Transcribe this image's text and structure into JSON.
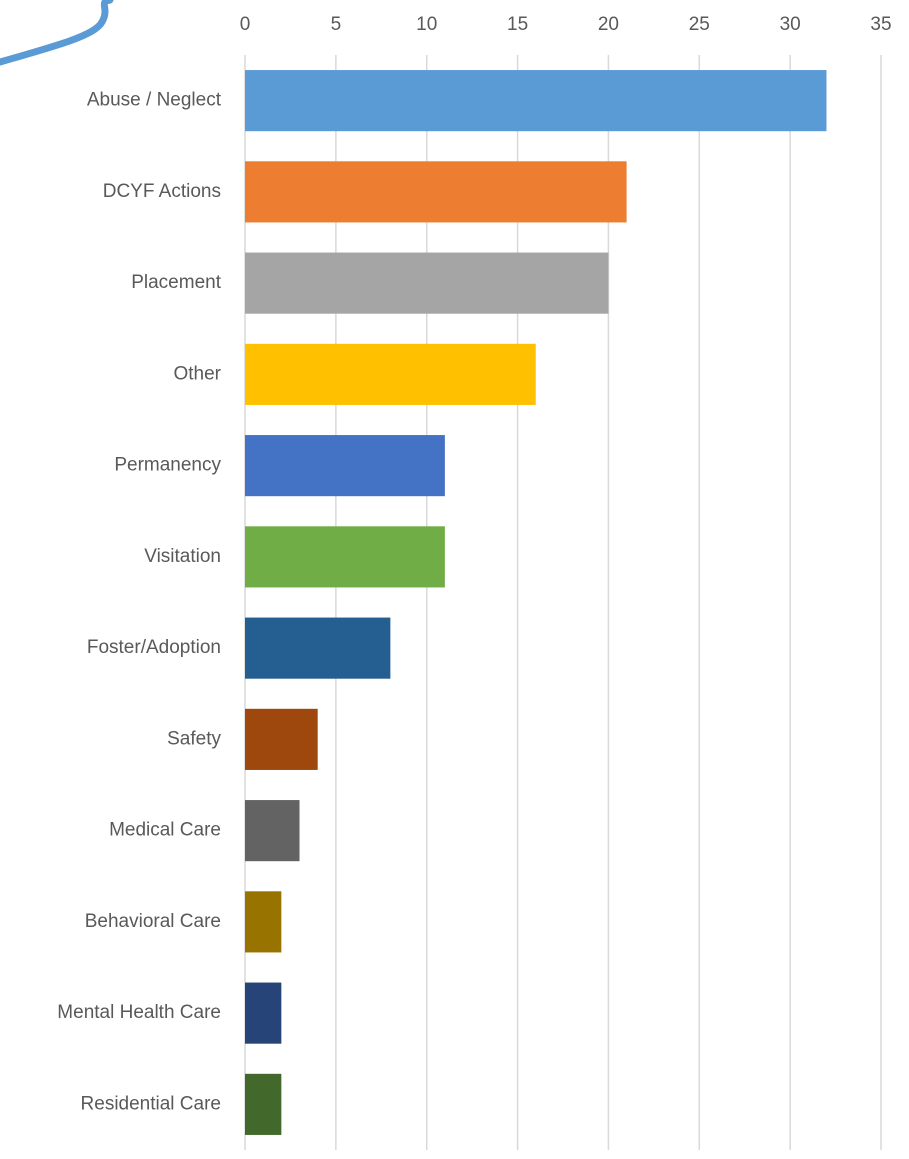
{
  "chart_data": {
    "type": "bar",
    "orientation": "horizontal",
    "categories": [
      "Abuse / Neglect",
      "DCYF Actions",
      "Placement",
      "Other",
      "Permanency",
      "Visitation",
      "Foster/Adoption",
      "Safety",
      "Medical Care",
      "Behavioral Care",
      "Mental Health Care",
      "Residential Care"
    ],
    "values": [
      32,
      21,
      20,
      16,
      11,
      11,
      8,
      4,
      3,
      2,
      2,
      2
    ],
    "colors": [
      "#5b9bd5",
      "#ed7d31",
      "#a5a5a5",
      "#ffc000",
      "#4472c4",
      "#70ad47",
      "#255e91",
      "#9e480e",
      "#636363",
      "#997300",
      "#264478",
      "#43682b"
    ],
    "xlim": [
      0,
      35
    ],
    "xticks": [
      0,
      5,
      10,
      15,
      20,
      25,
      30,
      35
    ],
    "grid": true
  }
}
